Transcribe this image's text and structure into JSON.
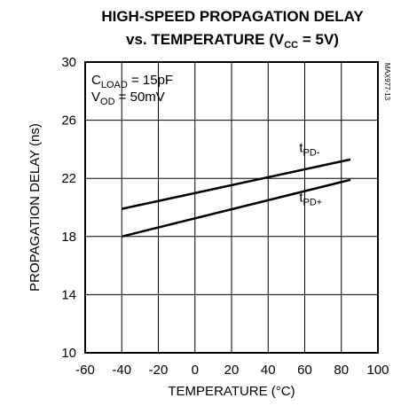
{
  "chart_data": {
    "type": "line",
    "title_line1": "HIGH-SPEED PROPAGATION DELAY",
    "title_line2_prefix": "vs. TEMPERATURE (V",
    "title_line2_sub": "CC",
    "title_line2_suffix": " = 5V)",
    "xlabel": "TEMPERATURE (°C)",
    "ylabel": "PROPAGATION DELAY (ns)",
    "xlim": [
      -60,
      100
    ],
    "ylim": [
      10,
      30
    ],
    "xticks": [
      -60,
      -40,
      -20,
      0,
      20,
      40,
      60,
      80,
      100
    ],
    "yticks": [
      10,
      14,
      18,
      22,
      26,
      30
    ],
    "grid": true,
    "conditions": [
      {
        "main": "C",
        "sub": "LOAD",
        "rest": " = 15pF"
      },
      {
        "main": "V",
        "sub": "OD",
        "rest": " = 50mV"
      }
    ],
    "figure_code": "MAX977-13",
    "series": [
      {
        "name_main": "t",
        "name_sub": "PD-",
        "x": [
          -40,
          85
        ],
        "y": [
          19.9,
          23.3
        ]
      },
      {
        "name_main": "t",
        "name_sub": "PD+",
        "x": [
          -40,
          85
        ],
        "y": [
          18.0,
          21.9
        ]
      }
    ]
  }
}
